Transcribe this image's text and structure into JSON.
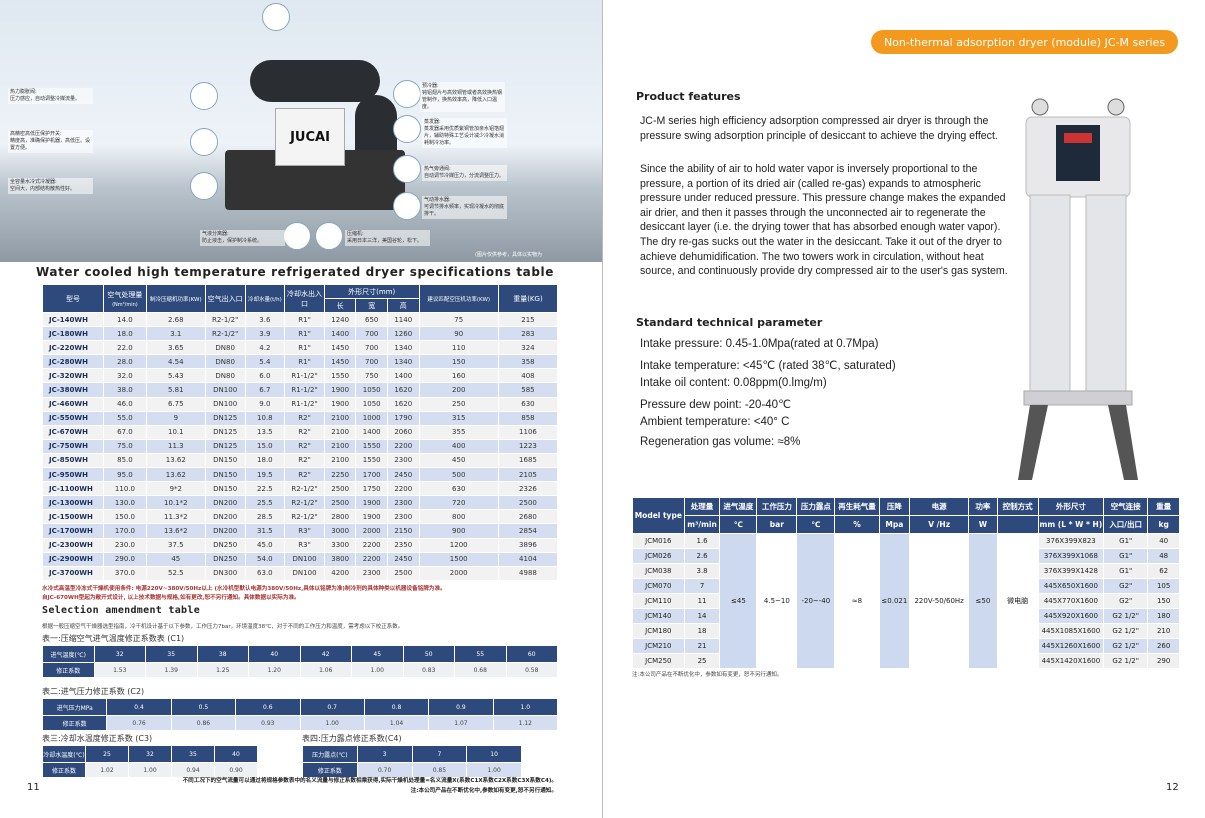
{
  "left_page": {
    "hero": {
      "brand": "JUCAI",
      "note": "(图片仅供参考，具体以实物为",
      "callouts": [
        {
          "title": "热力膨胀阀:",
          "text": "压力感应，自动调整冷媒流量。"
        },
        {
          "title": "高精密高低压保护开关:",
          "text": "精度高，准确保护机器，高低压。设置方便。"
        },
        {
          "title": "全容量水冷式冷凝器:",
          "text": "空间大，内部结构散热性好。"
        },
        {
          "title": "气液分离器:",
          "text": "防止液击，保护制冷系统。"
        },
        {
          "title": "压缩机:",
          "text": "采用日本三洋，美国谷轮，松下。"
        },
        {
          "title": "预冷器:",
          "text": "钝铝翅片与高效铜管或者高效换热钢管制作，换热效率高，降低入口温度。"
        },
        {
          "title": "蒸发器:",
          "text": "蒸发器采用优质紫铜管加亲水铝箔翅片，辅助特殊工艺设计减少冷凝水消耗制冷功率。"
        },
        {
          "title": "热气旁通阀:",
          "text": "自动调节冷媒压力，分流调整压力。"
        },
        {
          "title": "气动排水器:",
          "text": "可调节排水频率，实现冷凝水的彻底排干。"
        }
      ]
    },
    "spec_title": "Water cooled high temperature refrigerated dryer specifications table",
    "spec_headers": {
      "model": "型号",
      "flow": "空气处理量",
      "flow_unit": "(Nm³/min)",
      "power": "制冷压缩机功率(KW)",
      "port": "空气出入口",
      "water": "冷却水量(t/h)",
      "water_port": "冷却水出入口",
      "dims": "外形尺寸(mm)",
      "l": "长",
      "w": "宽",
      "h": "高",
      "comp": "建议匹配空压机功率(KW)",
      "weight": "重量(KG)"
    },
    "spec_rows": [
      [
        "JC-140WH",
        "14.0",
        "2.68",
        "R2-1/2\"",
        "3.6",
        "R1\"",
        "1240",
        "650",
        "1140",
        "75",
        "215"
      ],
      [
        "JC-180WH",
        "18.0",
        "3.1",
        "R2-1/2\"",
        "3.9",
        "R1\"",
        "1400",
        "700",
        "1260",
        "90",
        "283"
      ],
      [
        "JC-220WH",
        "22.0",
        "3.65",
        "DN80",
        "4.2",
        "R1\"",
        "1450",
        "700",
        "1340",
        "110",
        "324"
      ],
      [
        "JC-280WH",
        "28.0",
        "4.54",
        "DN80",
        "5.4",
        "R1\"",
        "1450",
        "700",
        "1340",
        "150",
        "358"
      ],
      [
        "JC-320WH",
        "32.0",
        "5.43",
        "DN80",
        "6.0",
        "R1-1/2\"",
        "1550",
        "750",
        "1400",
        "160",
        "408"
      ],
      [
        "JC-380WH",
        "38.0",
        "5.81",
        "DN100",
        "6.7",
        "R1-1/2\"",
        "1900",
        "1050",
        "1620",
        "200",
        "585"
      ],
      [
        "JC-460WH",
        "46.0",
        "6.75",
        "DN100",
        "9.0",
        "R1-1/2\"",
        "1900",
        "1050",
        "1620",
        "250",
        "630"
      ],
      [
        "JC-550WH",
        "55.0",
        "9",
        "DN125",
        "10.8",
        "R2\"",
        "2100",
        "1000",
        "1790",
        "315",
        "858"
      ],
      [
        "JC-670WH",
        "67.0",
        "10.1",
        "DN125",
        "13.5",
        "R2\"",
        "2100",
        "1400",
        "2060",
        "355",
        "1106"
      ],
      [
        "JC-750WH",
        "75.0",
        "11.3",
        "DN125",
        "15.0",
        "R2\"",
        "2100",
        "1550",
        "2200",
        "400",
        "1223"
      ],
      [
        "JC-850WH",
        "85.0",
        "13.62",
        "DN150",
        "18.0",
        "R2\"",
        "2100",
        "1550",
        "2300",
        "450",
        "1685"
      ],
      [
        "JC-950WH",
        "95.0",
        "13.62",
        "DN150",
        "19.5",
        "R2\"",
        "2250",
        "1700",
        "2450",
        "500",
        "2105"
      ],
      [
        "JC-1100WH",
        "110.0",
        "9*2",
        "DN150",
        "22.5",
        "R2-1/2\"",
        "2500",
        "1750",
        "2200",
        "630",
        "2326"
      ],
      [
        "JC-1300WH",
        "130.0",
        "10.1*2",
        "DN200",
        "25.5",
        "R2-1/2\"",
        "2500",
        "1900",
        "2300",
        "720",
        "2500"
      ],
      [
        "JC-1500WH",
        "150.0",
        "11.3*2",
        "DN200",
        "28.5",
        "R2-1/2\"",
        "2800",
        "1900",
        "2300",
        "800",
        "2680"
      ],
      [
        "JC-1700WH",
        "170.0",
        "13.6*2",
        "DN200",
        "31.5",
        "R3\"",
        "3000",
        "2000",
        "2150",
        "900",
        "2854"
      ],
      [
        "JC-2300WH",
        "230.0",
        "37.5",
        "DN250",
        "45.0",
        "R3\"",
        "3300",
        "2200",
        "2350",
        "1200",
        "3896"
      ],
      [
        "JC-2900WH",
        "290.0",
        "45",
        "DN250",
        "54.0",
        "DN100",
        "3800",
        "2200",
        "2450",
        "1500",
        "4104"
      ],
      [
        "JC-3700WH",
        "370.0",
        "52.5",
        "DN300",
        "63.0",
        "DN100",
        "4200",
        "2300",
        "2500",
        "2000",
        "4988"
      ]
    ],
    "spec_notes": [
      "水冷式高温型冷冻式干燥机使用条件: 电源220V~380V/50Hz以上 (水冷机型默认电源为380V/50Hz,具体以铭牌为准)制冷剂的具体种类以机器设备铭牌为准。",
      "自JC-670WH型起为敞开式设计, 以上技术数据与规格,如有更改,恕不另行通知。具体数据以实际为准。"
    ],
    "selection_title": "Selection amendment table",
    "selection_intro": "根据一般压缩空气干燥器选型指南，冷干机设计基于以下参数，工作压力7bar，环境温度38℃，对于不同的工作压力和温度，需考虑以下校正系数。",
    "table1": {
      "label": "表一:压缩空气进气温度修正系数表 (C1)",
      "row1_label": "进气温度(℃)",
      "row1": [
        "32",
        "35",
        "38",
        "40",
        "42",
        "45",
        "50",
        "55",
        "60"
      ],
      "row2_label": "修正系数",
      "row2": [
        "1.53",
        "1.39",
        "1.25",
        "1.20",
        "1.06",
        "1.00",
        "0.83",
        "0.68",
        "0.58"
      ]
    },
    "table2": {
      "label": "表二:进气压力修正系数 (C2)",
      "row1_label": "进气压力MPa",
      "row1": [
        "0.4",
        "0.5",
        "0.6",
        "0.7",
        "0.8",
        "0.9",
        "1.0"
      ],
      "row2_label": "修正系数",
      "row2": [
        "0.76",
        "0.86",
        "0.93",
        "1.00",
        "1.04",
        "1.07",
        "1.12"
      ]
    },
    "table3": {
      "label": "表三:冷却水温度修正系数 (C3)",
      "row1_label": "冷却水温度(℃)",
      "row1": [
        "25",
        "32",
        "35",
        "40"
      ],
      "row2_label": "修正系数",
      "row2": [
        "1.02",
        "1.00",
        "0.94",
        "0.90"
      ]
    },
    "table4": {
      "label": "表四:压力露点修正系数(C4)",
      "row1_label": "压力露点(℃)",
      "row1": [
        "3",
        "7",
        "10"
      ],
      "row2_label": "修正系数",
      "row2": [
        "0.70",
        "0.85",
        "1.00"
      ]
    },
    "footer_notes": [
      "不同工况下的空气流量可以通过将规格参数表中的名义流量与修正系数相乘获得,实际干燥机处理量=名义流量X(系数C1X系数C2X系数C3X系数C4)。",
      "注:本公司产品在不断优化中,参数如有变更,恕不另行通知。"
    ],
    "page_number": "11"
  },
  "right_page": {
    "badge": "Non-thermal adsorption dryer (module) JC-M series",
    "features_title": "Product features",
    "features": [
      "JC-M series high efficiency adsorption compressed air dryer is through the pressure swing adsorption principle of desiccant to achieve the drying effect.",
      "Since the ability of air to hold water vapor is inversely proportional to the pressure, a portion of its dried air (called re-gas) expands to atmospheric pressure under reduced pressure. This pressure change makes the expanded air drier, and then it passes through the unconnected air to regenerate the desiccant layer (i.e. the drying tower that has absorbed enough water vapor). The dry re-gas sucks out the water in the desiccant. Take it out of the dryer to achieve dehumidification. The two towers work in circulation, without heat source, and continuously provide dry compressed air to the user's gas system."
    ],
    "params_title": "Standard technical parameter",
    "params": [
      "Intake pressure: 0.45-1.0Mpa(rated at 0.7Mpa)",
      "Intake temperature: <45℃ (rated 38℃, saturated)",
      "Intake oil content: 0.08ppm(0.lmg/m)",
      "Pressure dew point: -20-40℃",
      "Ambient temperature: <40° C",
      "Regeneration gas volume: ≈8%"
    ],
    "table": {
      "model_header": "Model type",
      "headers": [
        "处理量",
        "进气温度",
        "工作压力",
        "压力露点",
        "再生耗气量",
        "压降",
        "电源",
        "功率",
        "控制方式",
        "外形尺寸",
        "空气连接",
        "重量"
      ],
      "units": [
        "m³/min",
        "℃",
        "bar",
        "℃",
        "%",
        "Mpa",
        "V /Hz",
        "W",
        "",
        "mm (L * W * H)",
        "入口/出口",
        "kg"
      ],
      "shared": [
        "≤45",
        "4.5~10",
        "-20~-40",
        "≈8",
        "≤0.021",
        "220V-50/60Hz",
        "≤50",
        "微电脑"
      ],
      "rows": [
        [
          "JCM016",
          "1.6",
          "376X399X823",
          "G1\"",
          "40"
        ],
        [
          "JCM026",
          "2.6",
          "376X399X1068",
          "G1\"",
          "48"
        ],
        [
          "JCM038",
          "3.8",
          "376X399X1428",
          "G1\"",
          "62"
        ],
        [
          "JCM070",
          "7",
          "445X650X1600",
          "G2\"",
          "105"
        ],
        [
          "JCM110",
          "11",
          "445X770X1600",
          "G2\"",
          "150"
        ],
        [
          "JCM140",
          "14",
          "445X920X1600",
          "G2 1/2\"",
          "180"
        ],
        [
          "JCM180",
          "18",
          "445X1085X1600",
          "G2 1/2\"",
          "210"
        ],
        [
          "JCM210",
          "21",
          "445X1260X1600",
          "G2 1/2\"",
          "260"
        ],
        [
          "JCM250",
          "25",
          "445X1420X1600",
          "G2 1/2\"",
          "290"
        ]
      ],
      "note": "注:本公司产品在不断优化中，参数如有变更，恕不另行通知。"
    },
    "page_number": "12"
  },
  "colors": {
    "header_navy": "#2e4a7c",
    "row_alt": "#d4def0",
    "badge_orange": "#f39a1e"
  }
}
